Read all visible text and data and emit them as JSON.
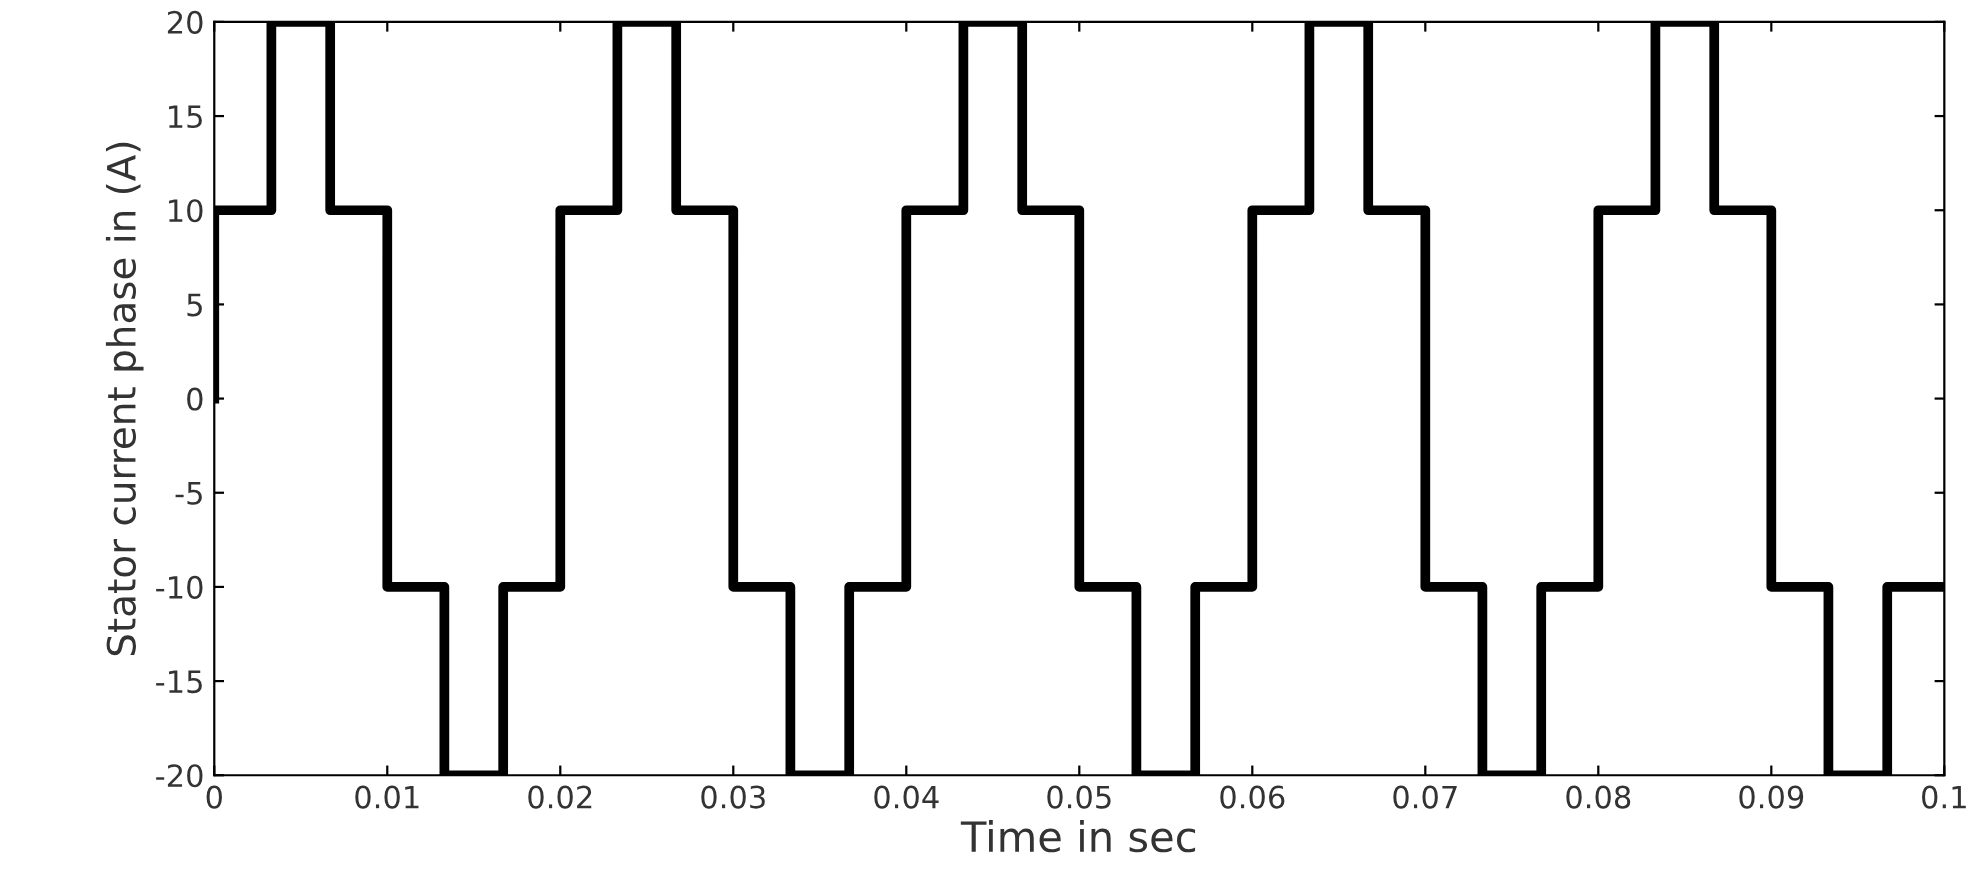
{
  "chart_data": {
    "type": "step",
    "xlabel": "Time in sec",
    "ylabel": "Stator current phase in (A)",
    "xlim": [
      0,
      0.1
    ],
    "ylim": [
      -20,
      20
    ],
    "xticks": [
      0,
      0.01,
      0.02,
      0.03,
      0.04,
      0.05,
      0.06,
      0.07,
      0.08,
      0.09,
      0.1
    ],
    "yticks": [
      -20,
      -15,
      -10,
      -5,
      0,
      5,
      10,
      15,
      20
    ],
    "grid": false,
    "series": [
      {
        "color": "#000000",
        "x": [
          0,
          0,
          0.0033,
          0.0067,
          0.01,
          0.0133,
          0.0167,
          0.02,
          0.0233,
          0.0267,
          0.03,
          0.0333,
          0.0367,
          0.04,
          0.0433,
          0.0467,
          0.05,
          0.0533,
          0.0567,
          0.06,
          0.0633,
          0.0667,
          0.07,
          0.0733,
          0.0767,
          0.08,
          0.0833,
          0.0867,
          0.09,
          0.0933,
          0.0967,
          0.1
        ],
        "values": [
          0,
          10,
          20,
          10,
          -10,
          -20,
          -10,
          10,
          20,
          10,
          -10,
          -20,
          -10,
          10,
          20,
          10,
          -10,
          -20,
          -10,
          10,
          20,
          10,
          -10,
          -20,
          -10,
          10,
          20,
          10,
          -10,
          -20,
          -10,
          -10
        ]
      }
    ]
  }
}
